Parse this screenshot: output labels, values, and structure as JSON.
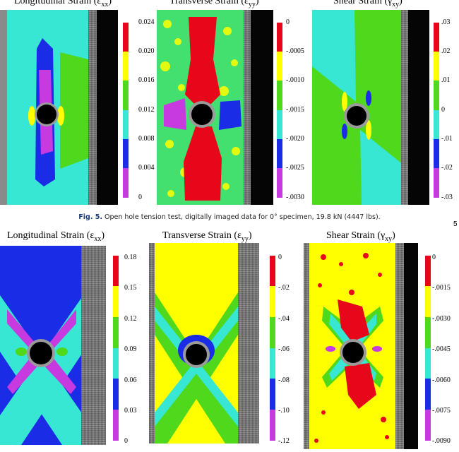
{
  "figure_top": {
    "panels": [
      {
        "title_main": "Longitudinal Strain (ε",
        "title_sub": "xx",
        "title_close": ")",
        "colorbar": [
          "#e8071a",
          "#ffff00",
          "#4fd81c",
          "#37e7d4",
          "#1a2ce6",
          "#c63ae0"
        ],
        "ticks": [
          "0.024",
          "0.020",
          "0.016",
          "0.012",
          "0.008",
          "0.004",
          "0"
        ]
      },
      {
        "title_main": "Transverse Strain (ε",
        "title_sub": "yy",
        "title_close": ")",
        "colorbar": [
          "#e8071a",
          "#ffff00",
          "#4fd81c",
          "#37e7d4",
          "#1a2ce6",
          "#c63ae0"
        ],
        "ticks": [
          "0",
          "-.0005",
          "-.0010",
          "-.0015",
          "-.0020",
          "-.0025",
          "-.0030"
        ]
      },
      {
        "title_main": "Shear Strain (γ",
        "title_sub": "xy",
        "title_close": ")",
        "colorbar": [
          "#e8071a",
          "#ffff00",
          "#4fd81c",
          "#37e7d4",
          "#1a2ce6",
          "#c63ae0"
        ],
        "ticks": [
          ".03",
          ".02",
          ".01",
          "0",
          "-.01",
          "-.02",
          "-.03"
        ]
      }
    ]
  },
  "caption": {
    "label": "Fig. 5.",
    "text": "Open hole tension test, digitally imaged data for 0° specimen, 19.8 kN (4447 lbs)."
  },
  "figure_bottom": {
    "panels": [
      {
        "title_main": "Longitudinal Strain (ε",
        "title_sub": "xx",
        "title_close": ")",
        "colorbar": [
          "#e8071a",
          "#ffff00",
          "#4fd81c",
          "#37e7d4",
          "#1a2ce6",
          "#c63ae0"
        ],
        "ticks": [
          "0.18",
          "0.15",
          "0.12",
          "0.09",
          "0.06",
          "0.03",
          "0"
        ]
      },
      {
        "title_main": "Transverse Strain (ε",
        "title_sub": "yy",
        "title_close": ")",
        "colorbar": [
          "#e8071a",
          "#ffff00",
          "#4fd81c",
          "#37e7d4",
          "#1a2ce6",
          "#c63ae0"
        ],
        "ticks": [
          "0",
          "-.02",
          "-.04",
          "-.06",
          "-.08",
          "-.10",
          "-.12"
        ]
      },
      {
        "title_main": "Shear Strain (γ",
        "title_sub": "xy",
        "title_close": ")",
        "colorbar": [
          "#e8071a",
          "#ffff00",
          "#4fd81c",
          "#37e7d4",
          "#1a2ce6",
          "#c63ae0"
        ],
        "ticks": [
          "0",
          "-.0015",
          "-.0030",
          "-.0045",
          "-.0060",
          "-.0075",
          "-.0090"
        ]
      }
    ]
  },
  "margin_mark": "5"
}
